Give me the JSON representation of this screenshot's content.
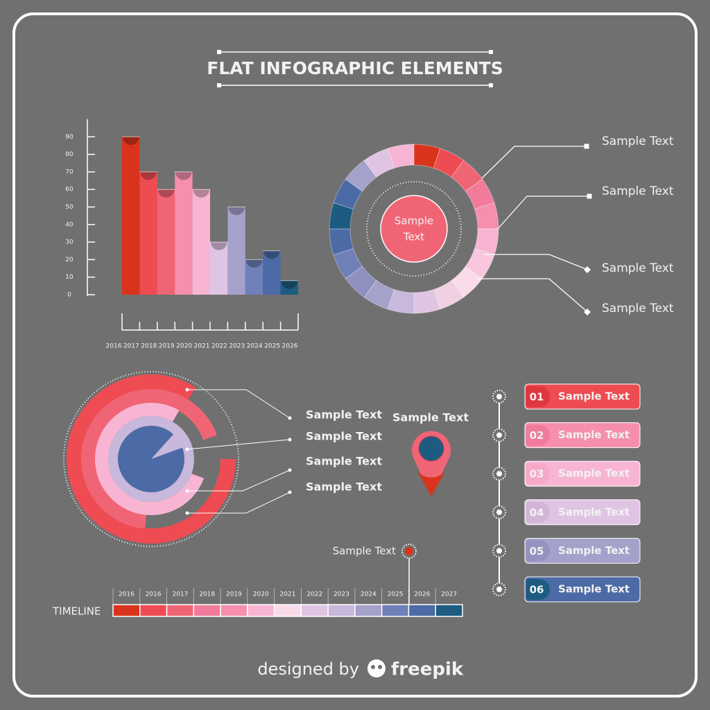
{
  "title": "FLAT INFOGRAPHIC ELEMENTS",
  "chart_data": {
    "type": "histogram",
    "bins": [
      2016,
      2017,
      2018,
      2019,
      2020,
      2021,
      2022,
      2023,
      2024,
      2025,
      2026
    ],
    "values": [
      90,
      70,
      60,
      70,
      60,
      30,
      50,
      20,
      25,
      8
    ],
    "colors": [
      "#d9341b",
      "#ee4c52",
      "#f06575",
      "#f58fad",
      "#f8b5d3",
      "#e0c4e3",
      "#a4a1ca",
      "#6f7fb7",
      "#4c6aa5",
      "#1d5c80"
    ],
    "xlim": [
      2016,
      2026
    ],
    "xticks": [
      2016,
      2017,
      2018,
      2019,
      2020,
      2021,
      2022,
      2023,
      2024,
      2025,
      2026
    ],
    "ylim": [
      0,
      100
    ],
    "yticks": [
      0,
      10,
      20,
      30,
      40,
      50,
      60,
      70,
      80,
      90
    ],
    "grid": false
  },
  "ring_chart": {
    "colors": [
      "#d9341b",
      "#ee4c52",
      "#f06575",
      "#f27a9a",
      "#f58fad",
      "#f8b5d3",
      "#f9c6de",
      "#fadbe9",
      "#f2d0e4",
      "#e0c4e3",
      "#c8b8db",
      "#a4a1ca",
      "#8e90c0",
      "#6f7fb7",
      "#4c6aa5",
      "#1d5c80",
      "#4c6aa5",
      "#a4a1ca",
      "#e0c4e3",
      "#f8b5d3"
    ],
    "center": [
      "Sample",
      "Text"
    ],
    "labels": [
      "Sample Text",
      "Sample Text",
      "Sample Text",
      "Sample Text"
    ]
  },
  "concentric_chart": {
    "labels": [
      "Sample Text",
      "Sample Text",
      "Sample Text",
      "Sample Text"
    ]
  },
  "pin": {
    "label": "Sample Text"
  },
  "steps": [
    {
      "number": "01",
      "text": "Sample Text",
      "color": "#ee4c52",
      "tab": "#e0363f"
    },
    {
      "number": "02",
      "text": "Sample Text",
      "color": "#f58fad",
      "tab": "#f27a9a"
    },
    {
      "number": "03",
      "text": "Sample Text",
      "color": "#f8b5d3",
      "tab": "#f6a8c9"
    },
    {
      "number": "04",
      "text": "Sample Text",
      "color": "#e0c4e3",
      "tab": "#d3b5d8"
    },
    {
      "number": "05",
      "text": "Sample Text",
      "color": "#a4a1ca",
      "tab": "#9592bf"
    },
    {
      "number": "06",
      "text": "Sample Text",
      "color": "#4c6aa5",
      "tab": "#1d5c80"
    }
  ],
  "timeline": {
    "title": "TIMELINE",
    "years": [
      "2016",
      "2016",
      "2017",
      "2018",
      "2019",
      "2020",
      "2021",
      "2022",
      "2023",
      "2024",
      "2025",
      "2026",
      "2027"
    ],
    "colors": [
      "#d9341b",
      "#ee4c52",
      "#f06575",
      "#f27a9a",
      "#f58fad",
      "#f8b5d3",
      "#fadbe9",
      "#e0c4e3",
      "#c8b8db",
      "#a4a1ca",
      "#6f7fb7",
      "#4c6aa5",
      "#1d5c80"
    ],
    "marker_label": "Sample Text"
  },
  "footer": {
    "prefix": "designed by",
    "brand": "freepik"
  }
}
